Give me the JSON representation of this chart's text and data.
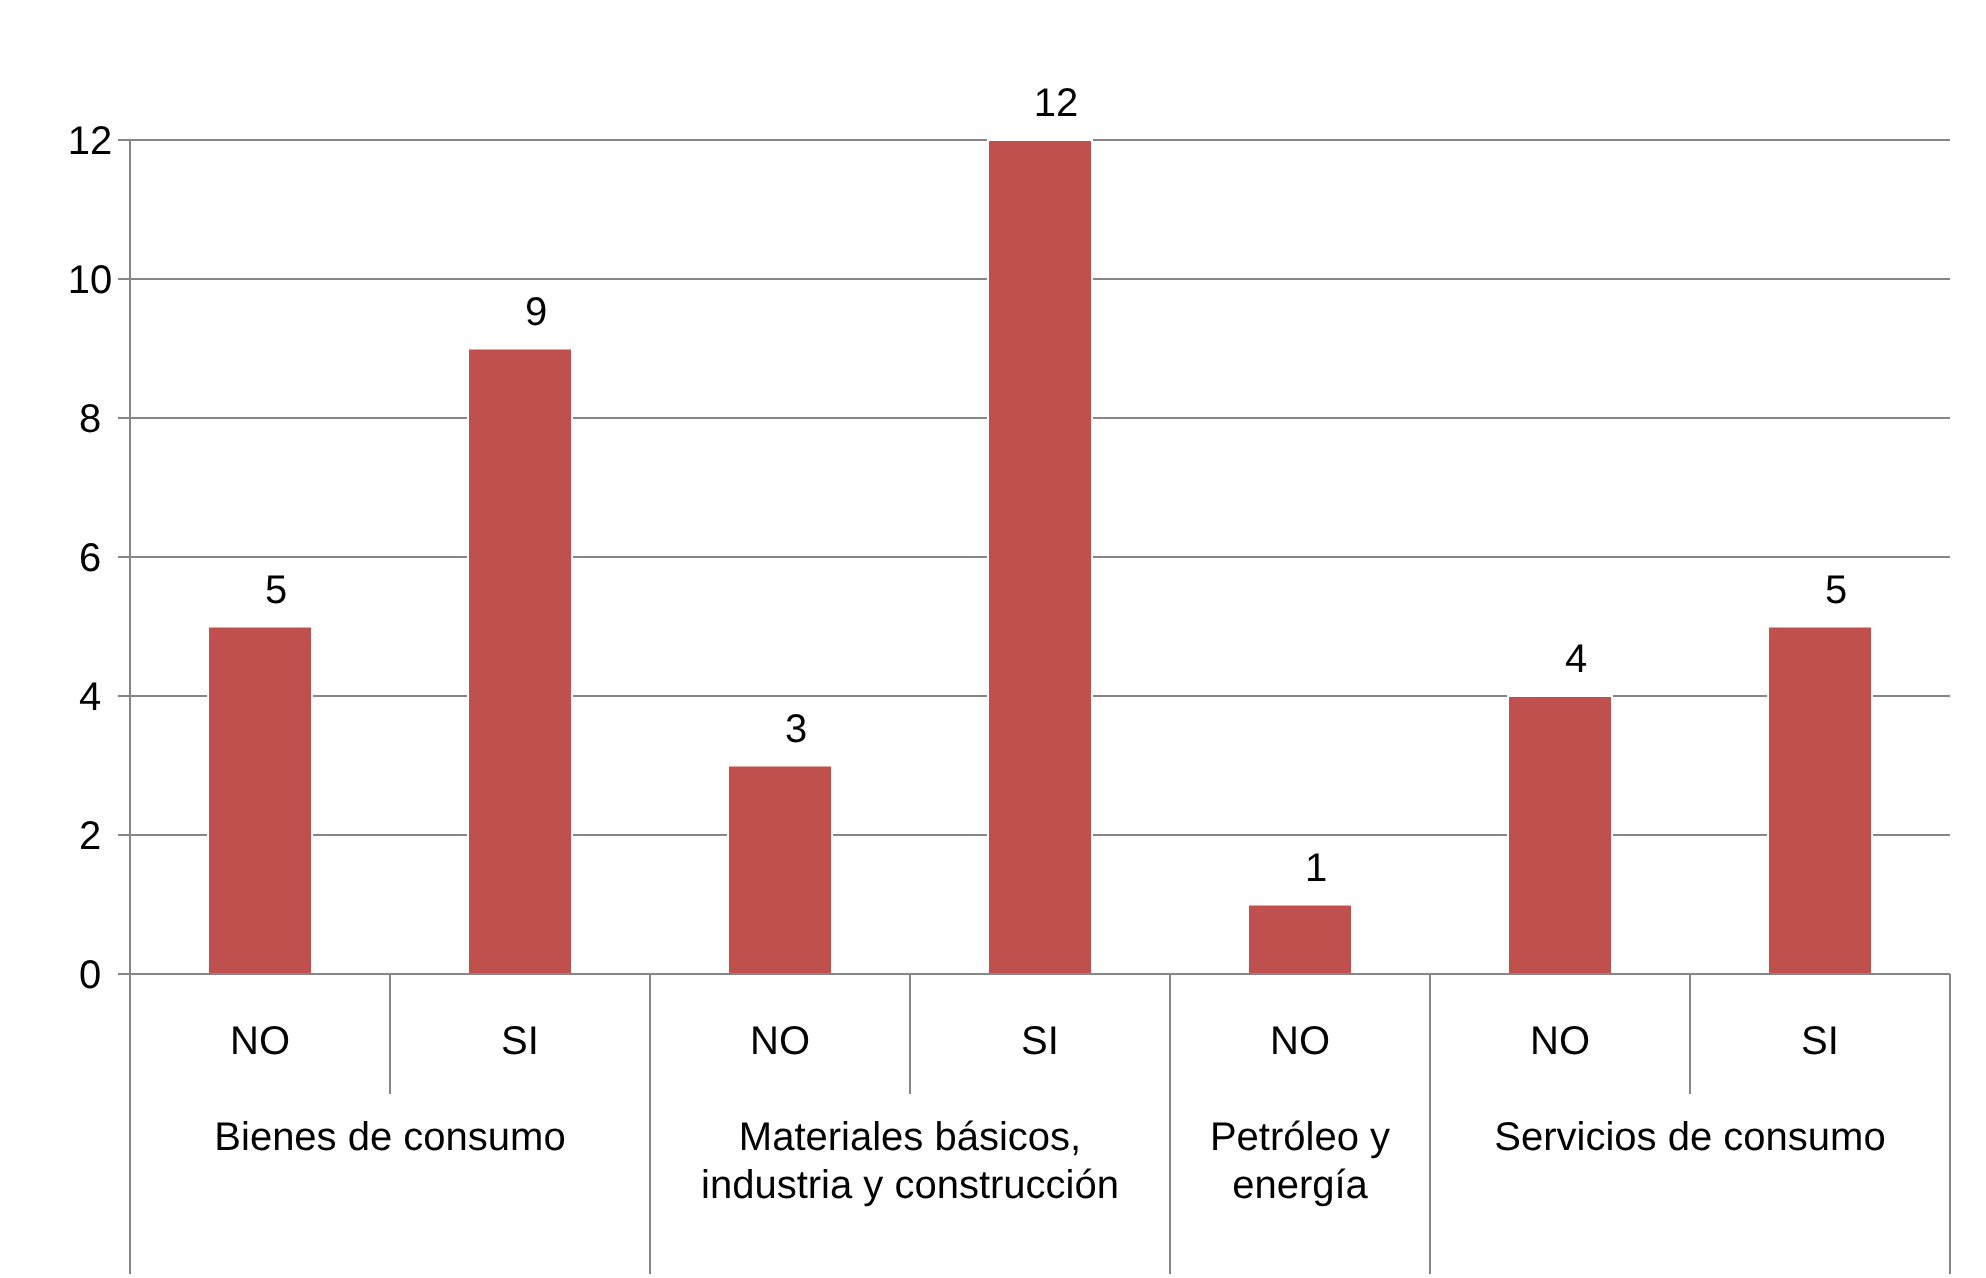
{
  "chart_data": {
    "type": "bar",
    "categories": [
      "NO",
      "SI",
      "NO",
      "SI",
      "NO",
      "NO",
      "SI"
    ],
    "values": [
      5,
      9,
      3,
      12,
      1,
      4,
      5
    ],
    "color": "#c0504d",
    "ylim": [
      0,
      12
    ],
    "yticks": [
      0,
      2,
      4,
      6,
      8,
      10,
      12
    ],
    "grid": "y",
    "data_labels": true,
    "annotations": [
      "Bienes de consumo",
      "Materiales básicos, industria y construcción",
      "Petróleo y energía",
      "Servicios de consumo"
    ]
  }
}
